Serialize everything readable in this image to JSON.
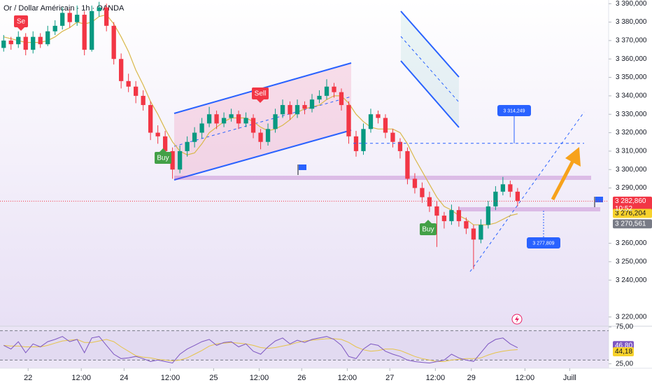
{
  "chart_data": {
    "type": "candlestick",
    "title": "Or / Dollar Américain · 1h · OANDA",
    "open": [
      3366,
      3370,
      3368,
      3372,
      3365,
      3372,
      3368,
      3375,
      3378,
      3385,
      3380,
      3384,
      3365,
      3386,
      3388,
      3378,
      3360,
      3348,
      3345,
      3340,
      3335,
      3320,
      3318,
      3310,
      3300,
      3310,
      3315,
      3320,
      3325,
      3330,
      3325,
      3328,
      3330,
      3325,
      3328,
      3320,
      3315,
      3322,
      3330,
      3335,
      3330,
      3335,
      3333,
      3338,
      3340,
      3345,
      3342,
      3335,
      3318,
      3310,
      3322,
      3330,
      3328,
      3320,
      3315,
      3310,
      3295,
      3290,
      3285,
      3280,
      3275,
      3272,
      3278,
      3272,
      3268,
      3262,
      3270,
      3280,
      3288,
      3292,
      3288
    ],
    "high": [
      3373,
      3372,
      3375,
      3374,
      3375,
      3374,
      3378,
      3381,
      3388,
      3387,
      3389,
      3386,
      3389,
      3391,
      3390,
      3380,
      3363,
      3352,
      3348,
      3343,
      3337,
      3324,
      3321,
      3312,
      3313,
      3318,
      3323,
      3328,
      3334,
      3332,
      3331,
      3333,
      3332,
      3331,
      3330,
      3322,
      3325,
      3333,
      3338,
      3337,
      3338,
      3337,
      3341,
      3343,
      3349,
      3347,
      3344,
      3337,
      3321,
      3325,
      3333,
      3332,
      3330,
      3322,
      3317,
      3312,
      3298,
      3293,
      3288,
      3283,
      3277,
      3281,
      3280,
      3274,
      3270,
      3273,
      3283,
      3291,
      3296,
      3294,
      3290
    ],
    "low": [
      3364,
      3365,
      3366,
      3362,
      3363,
      3366,
      3367,
      3373,
      3376,
      3377,
      3378,
      3362,
      3364,
      3383,
      3375,
      3357,
      3344,
      3342,
      3336,
      3332,
      3316,
      3314,
      3306,
      3295,
      3298,
      3307,
      3312,
      3317,
      3323,
      3322,
      3323,
      3326,
      3322,
      3323,
      3317,
      3311,
      3313,
      3320,
      3328,
      3327,
      3328,
      3330,
      3331,
      3336,
      3338,
      3339,
      3332,
      3314,
      3307,
      3308,
      3320,
      3325,
      3317,
      3312,
      3306,
      3292,
      3287,
      3282,
      3277,
      3258,
      3268,
      3270,
      3269,
      3265,
      3246,
      3260,
      3268,
      3278,
      3286,
      3285,
      3280
    ],
    "close": [
      3370,
      3368,
      3372,
      3365,
      3372,
      3368,
      3375,
      3378,
      3385,
      3380,
      3384,
      3365,
      3386,
      3388,
      3378,
      3360,
      3348,
      3345,
      3340,
      3335,
      3320,
      3318,
      3310,
      3300,
      3310,
      3315,
      3320,
      3325,
      3330,
      3325,
      3328,
      3330,
      3325,
      3328,
      3320,
      3315,
      3322,
      3330,
      3335,
      3330,
      3335,
      3333,
      3338,
      3340,
      3345,
      3342,
      3335,
      3318,
      3310,
      3322,
      3330,
      3328,
      3320,
      3315,
      3310,
      3295,
      3290,
      3285,
      3280,
      3275,
      3272,
      3278,
      3272,
      3268,
      3262,
      3270,
      3280,
      3288,
      3292,
      3288,
      3283
    ],
    "up_color": "#089981",
    "down_color": "#f23645",
    "moving_average": {
      "color": "#d9b84a",
      "values": [
        3372,
        3371,
        3370,
        3369,
        3369,
        3369,
        3370,
        3372,
        3375,
        3377,
        3380,
        3379,
        3380,
        3383,
        3384,
        3379,
        3372,
        3364,
        3354,
        3346,
        3337,
        3330,
        3322,
        3315,
        3310,
        3308,
        3309,
        3314,
        3320,
        3323,
        3326,
        3328,
        3328,
        3328,
        3326,
        3323,
        3321,
        3322,
        3324,
        3327,
        3331,
        3333,
        3334,
        3335,
        3338,
        3340,
        3340,
        3336,
        3330,
        3326,
        3323,
        3322,
        3322,
        3322,
        3320,
        3314,
        3306,
        3299,
        3292,
        3285,
        3280,
        3278,
        3275,
        3273,
        3270,
        3270,
        3270,
        3271,
        3273,
        3275,
        3276
      ]
    },
    "xlim": [
      -0.5,
      82.4
    ],
    "xticks": [
      {
        "value": 3.33,
        "label": "22"
      },
      {
        "value": 10.57,
        "label": "12:00"
      },
      {
        "value": 16.4,
        "label": "24"
      },
      {
        "value": 22.7,
        "label": "12:00"
      },
      {
        "value": 28.6,
        "label": "25"
      },
      {
        "value": 34.8,
        "label": "12:00"
      },
      {
        "value": 40.6,
        "label": "26"
      },
      {
        "value": 46.8,
        "label": "12:00"
      },
      {
        "value": 52.6,
        "label": "27"
      },
      {
        "value": 58.8,
        "label": "12:00"
      },
      {
        "value": 63.7,
        "label": "29"
      },
      {
        "value": 71,
        "label": "12:00"
      },
      {
        "value": 77.1,
        "label": "Juill"
      }
    ],
    "ylim": [
      3215,
      3392
    ],
    "yticks": [
      {
        "value": 3390,
        "label": "3 390,000"
      },
      {
        "value": 3380,
        "label": "3 380,000"
      },
      {
        "value": 3370,
        "label": "3 370,000"
      },
      {
        "value": 3360,
        "label": "3 360,000"
      },
      {
        "value": 3350,
        "label": "3 350,000"
      },
      {
        "value": 3340,
        "label": "3 340,000"
      },
      {
        "value": 3330,
        "label": "3 330,000"
      },
      {
        "value": 3320,
        "label": "3 320,000"
      },
      {
        "value": 3310,
        "label": "3 310,000"
      },
      {
        "value": 3300,
        "label": "3 300,000"
      },
      {
        "value": 3290,
        "label": "3 290,000"
      },
      {
        "value": 3260,
        "label": "3 260,000"
      },
      {
        "value": 3250,
        "label": "3 250,000"
      },
      {
        "value": 3240,
        "label": "3 240,000"
      },
      {
        "value": 3220,
        "label": "3 220,000"
      }
    ],
    "signals": [
      {
        "text": "Se",
        "color": "#f23645"
      },
      {
        "text": "Sell",
        "color": "#f23645"
      },
      {
        "text": "Buy",
        "color": "#43a047"
      },
      {
        "text": "Buy",
        "color": "#43a047"
      }
    ],
    "annotations": [
      {
        "value": 3314.249,
        "label": "3 314,249"
      },
      {
        "value": 3277.809,
        "label": "3 277,809"
      }
    ],
    "price_labels": [
      {
        "value": 3282.86,
        "label": "3 282,860",
        "color": "#f23645"
      },
      {
        "value": 3276.204,
        "label": "3 276,204",
        "color": "#f7d22c"
      },
      {
        "value": 3270.561,
        "label": "3 270,561",
        "color": "#787b86"
      }
    ],
    "countdown": "10:52",
    "rsi": {
      "color": "#7e57c2",
      "values": [
        50,
        45,
        55,
        40,
        52,
        48,
        55,
        58,
        62,
        55,
        58,
        40,
        60,
        62,
        50,
        38,
        32,
        33,
        35,
        32,
        28,
        30,
        28,
        26,
        38,
        45,
        50,
        55,
        58,
        50,
        54,
        55,
        48,
        52,
        42,
        38,
        48,
        56,
        60,
        52,
        57,
        54,
        58,
        60,
        62,
        58,
        50,
        35,
        32,
        45,
        52,
        50,
        42,
        38,
        35,
        30,
        28,
        27,
        26,
        28,
        30,
        38,
        33,
        30,
        28,
        40,
        52,
        58,
        60,
        52,
        46.8
      ],
      "ma_color": "#e6c34a",
      "ma_values": [
        50,
        49,
        49,
        48,
        48,
        48,
        50,
        53,
        56,
        57,
        58,
        54,
        54,
        56,
        58,
        55,
        48,
        42,
        36,
        34,
        33,
        31,
        30,
        29,
        30,
        33,
        38,
        43,
        49,
        52,
        53,
        54,
        53,
        52,
        50,
        47,
        46,
        47,
        49,
        51,
        54,
        56,
        57,
        58,
        59,
        59,
        58,
        54,
        48,
        44,
        42,
        43,
        45,
        45,
        43,
        39,
        35,
        32,
        30,
        28,
        28,
        30,
        31,
        32,
        32,
        33,
        37,
        40,
        42,
        43.5,
        44.18
      ],
      "ylim": [
        19,
        76
      ],
      "yticks": [
        {
          "value": 75,
          "label": "75,00"
        },
        {
          "value": 25,
          "label": "25,00"
        }
      ],
      "bands": [
        30,
        70
      ],
      "value_labels": [
        {
          "value": 46.8,
          "label": "46,80",
          "color": "#7e57c2"
        },
        {
          "value": 44.18,
          "label": "44,18",
          "color": "#f7d22c"
        }
      ]
    }
  }
}
